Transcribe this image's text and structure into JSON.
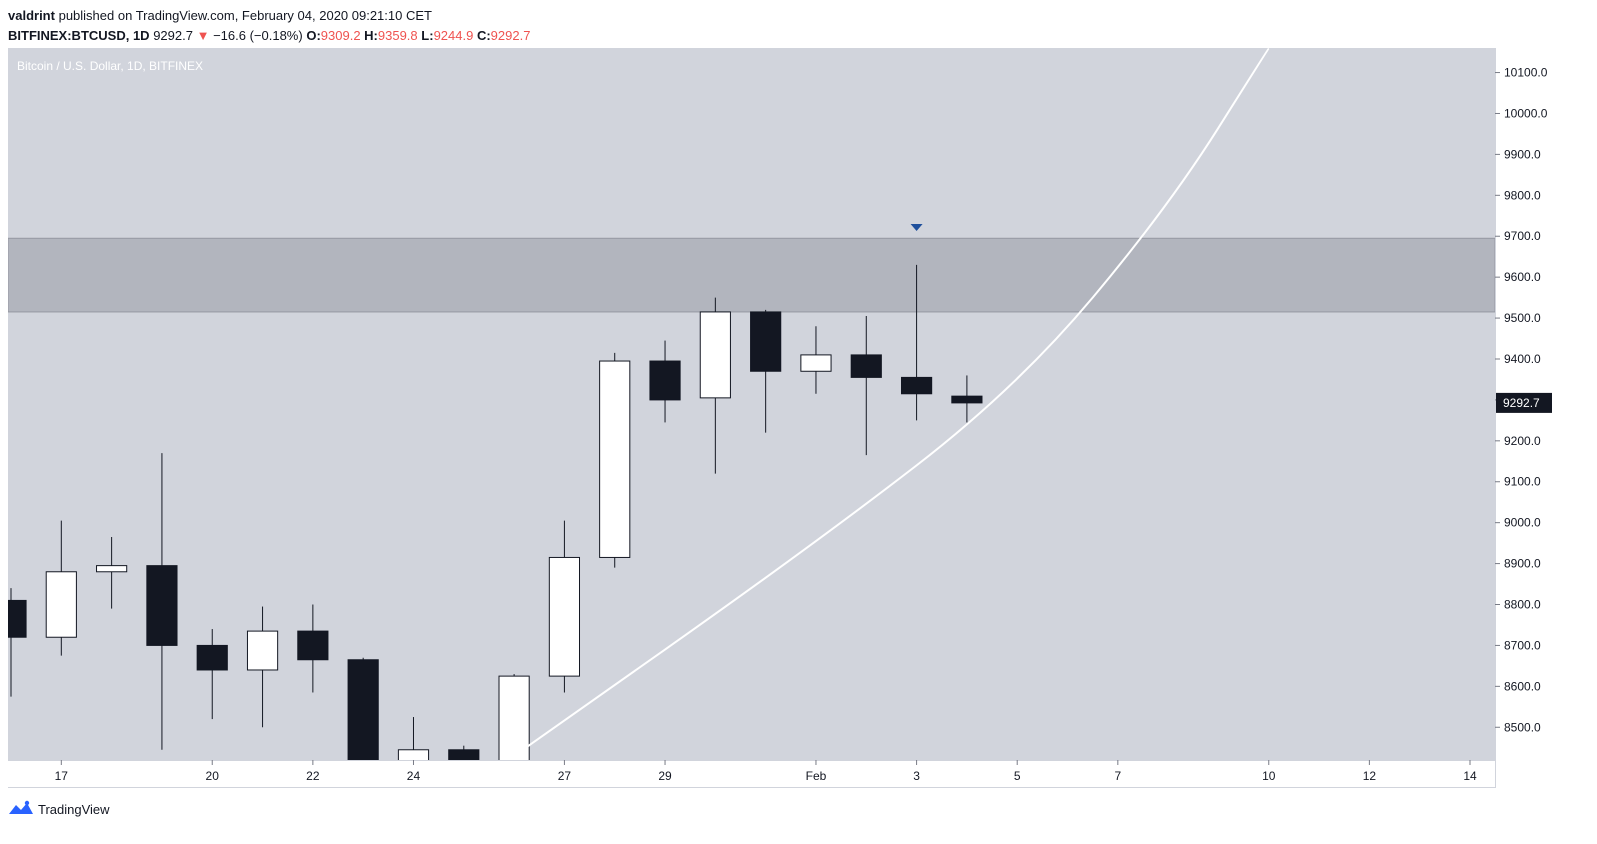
{
  "header": {
    "publisher": "valdrint",
    "published_text": "published on TradingView.com, February 04, 2020 09:21:10 CET",
    "symbol": "BITFINEX:BTCUSD, 1D",
    "last": "9292.7",
    "change_arrow": "▼",
    "change": "−16.6 (−0.18%)",
    "o_label": "O:",
    "o": "9309.2",
    "h_label": "H:",
    "h": "9359.8",
    "l_label": "L:",
    "l": "9244.9",
    "c_label": "C:",
    "c": "9292.7"
  },
  "footer": {
    "brand": "TradingView"
  },
  "colors": {
    "plot_bg": "#d1d4dc",
    "zone": "#b2b5be",
    "up_fill": "#ffffff",
    "down_fill": "#131722",
    "wick": "#131722",
    "curve": "#ffffff",
    "marker": "#1e4f9c",
    "price_label_bg": "#131722",
    "down_color": "#ef5350"
  },
  "chart_data": {
    "type": "candlestick",
    "title": "Bitcoin / U.S. Dollar, 1D, BITFINEX",
    "ylim": [
      8420,
      10160
    ],
    "y_ticks": [
      8500,
      8600,
      8700,
      8800,
      8900,
      9000,
      9100,
      9200,
      9300,
      9400,
      9500,
      9600,
      9700,
      9800,
      9900,
      10000,
      10100
    ],
    "y_tick_labels": [
      "8500.0",
      "8600.0",
      "8700.0",
      "8800.0",
      "8900.0",
      "9000.0",
      "9100.0",
      "9200.0",
      "9300.0",
      "9400.0",
      "9500.0",
      "9600.0",
      "9700.0",
      "9800.0",
      "9900.0",
      "10000.0",
      "10100.0"
    ],
    "x_range": [
      "2020-01-16",
      "2020-02-14"
    ],
    "x_ticks": [
      {
        "date": "2020-01-17",
        "label": "17"
      },
      {
        "date": "2020-01-20",
        "label": "20"
      },
      {
        "date": "2020-01-22",
        "label": "22"
      },
      {
        "date": "2020-01-24",
        "label": "24"
      },
      {
        "date": "2020-01-27",
        "label": "27"
      },
      {
        "date": "2020-01-29",
        "label": "29"
      },
      {
        "date": "2020-02-01",
        "label": "Feb"
      },
      {
        "date": "2020-02-03",
        "label": "3"
      },
      {
        "date": "2020-02-05",
        "label": "5"
      },
      {
        "date": "2020-02-07",
        "label": "7"
      },
      {
        "date": "2020-02-10",
        "label": "10"
      },
      {
        "date": "2020-02-12",
        "label": "12"
      },
      {
        "date": "2020-02-14",
        "label": "14"
      }
    ],
    "candles": [
      {
        "date": "2020-01-16",
        "open": 8810,
        "high": 8840,
        "low": 8575,
        "close": 8720
      },
      {
        "date": "2020-01-17",
        "open": 8720,
        "high": 9005,
        "low": 8675,
        "close": 8880
      },
      {
        "date": "2020-01-18",
        "open": 8880,
        "high": 8965,
        "low": 8790,
        "close": 8895
      },
      {
        "date": "2020-01-19",
        "open": 8895,
        "high": 9170,
        "low": 8445,
        "close": 8700
      },
      {
        "date": "2020-01-20",
        "open": 8700,
        "high": 8740,
        "low": 8520,
        "close": 8640
      },
      {
        "date": "2020-01-21",
        "open": 8640,
        "high": 8795,
        "low": 8500,
        "close": 8735
      },
      {
        "date": "2020-01-22",
        "open": 8735,
        "high": 8800,
        "low": 8585,
        "close": 8665
      },
      {
        "date": "2020-01-23",
        "open": 8665,
        "high": 8670,
        "low": 8330,
        "close": 8395
      },
      {
        "date": "2020-01-24",
        "open": 8395,
        "high": 8525,
        "low": 8265,
        "close": 8445
      },
      {
        "date": "2020-01-25",
        "open": 8445,
        "high": 8455,
        "low": 8300,
        "close": 8340
      },
      {
        "date": "2020-01-26",
        "open": 8340,
        "high": 8630,
        "low": 8320,
        "close": 8625
      },
      {
        "date": "2020-01-27",
        "open": 8625,
        "high": 9005,
        "low": 8585,
        "close": 8915
      },
      {
        "date": "2020-01-28",
        "open": 8915,
        "high": 9415,
        "low": 8890,
        "close": 9395
      },
      {
        "date": "2020-01-29",
        "open": 9395,
        "high": 9445,
        "low": 9245,
        "close": 9300
      },
      {
        "date": "2020-01-30",
        "open": 9305,
        "high": 9550,
        "low": 9120,
        "close": 9515
      },
      {
        "date": "2020-01-31",
        "open": 9515,
        "high": 9520,
        "low": 9220,
        "close": 9370
      },
      {
        "date": "2020-02-01",
        "open": 9370,
        "high": 9480,
        "low": 9315,
        "close": 9410
      },
      {
        "date": "2020-02-02",
        "open": 9410,
        "high": 9505,
        "low": 9165,
        "close": 9355
      },
      {
        "date": "2020-02-03",
        "open": 9355,
        "high": 9630,
        "low": 9250,
        "close": 9315
      },
      {
        "date": "2020-02-04",
        "open": 9309.2,
        "high": 9359.8,
        "low": 9244.9,
        "close": 9292.7
      }
    ],
    "resistance_zone": [
      9515,
      9695
    ],
    "marker": {
      "date": "2020-02-03",
      "price": 9720,
      "shape": "triangle-down"
    },
    "curve_points": [
      {
        "date": "2020-01-26",
        "price": 8430
      },
      {
        "date": "2020-02-01",
        "price": 8950
      },
      {
        "date": "2020-02-05",
        "price": 9330
      },
      {
        "date": "2020-02-08",
        "price": 9770
      },
      {
        "date": "2020-02-10",
        "price": 10160
      }
    ],
    "last_price_label": "9292.7"
  }
}
